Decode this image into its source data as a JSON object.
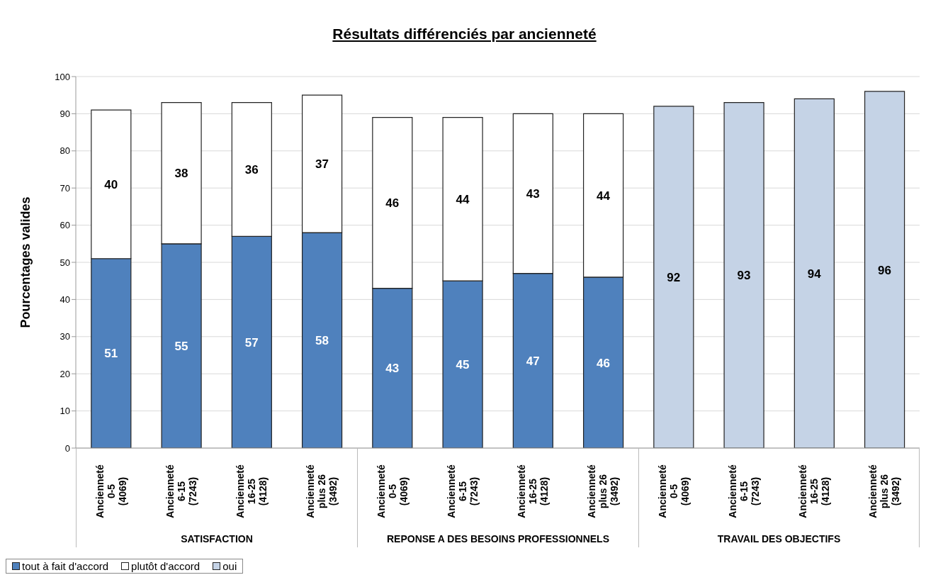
{
  "chart_data": {
    "type": "bar",
    "title": "Résultats différenciés par ancienneté",
    "ylabel": "Pourcentages  valides",
    "categories": [
      "Ancienneté\n0-5\n(4069)",
      "Ancienneté\n6-15\n(7243)",
      "Ancienneté\n16-25\n(4128)",
      "Ancienneté\nplus 26\n(3492)",
      "Ancienneté\n0-5\n(4069)",
      "Ancienneté\n6-15\n(7243)",
      "Ancienneté\n16-25\n(4128)",
      "Ancienneté\nplus 26\n(3492)",
      "Ancienneté\n0-5\n(4069)",
      "Ancienneté\n6-15\n(7243)",
      "Ancienneté\n16-25\n(4128)",
      "Ancienneté\nplus 26\n(3492)"
    ],
    "annotations": [
      "SATISFACTION",
      "REPONSE A DES BESOINS PROFESSIONNELS",
      "TRAVAIL DES OBJECTIFS"
    ],
    "series": [
      {
        "name": "tout à fait d'accord",
        "color": "#4f81bd",
        "values": [
          51,
          55,
          57,
          58,
          43,
          45,
          47,
          46,
          null,
          null,
          null,
          null
        ]
      },
      {
        "name": "plutôt d'accord",
        "color": "#ffffff",
        "values": [
          40,
          38,
          36,
          37,
          46,
          44,
          43,
          44,
          null,
          null,
          null,
          null
        ]
      },
      {
        "name": "oui",
        "color": "#c5d3e6",
        "values": [
          null,
          null,
          null,
          null,
          null,
          null,
          null,
          null,
          92,
          93,
          94,
          96
        ]
      }
    ],
    "stacked": true,
    "data_labels": true,
    "ylim": [
      0,
      100
    ],
    "yticks": [
      0,
      10,
      20,
      30,
      40,
      50,
      60,
      70,
      80,
      90,
      100
    ],
    "grid": "y",
    "legend": "bottom left"
  }
}
